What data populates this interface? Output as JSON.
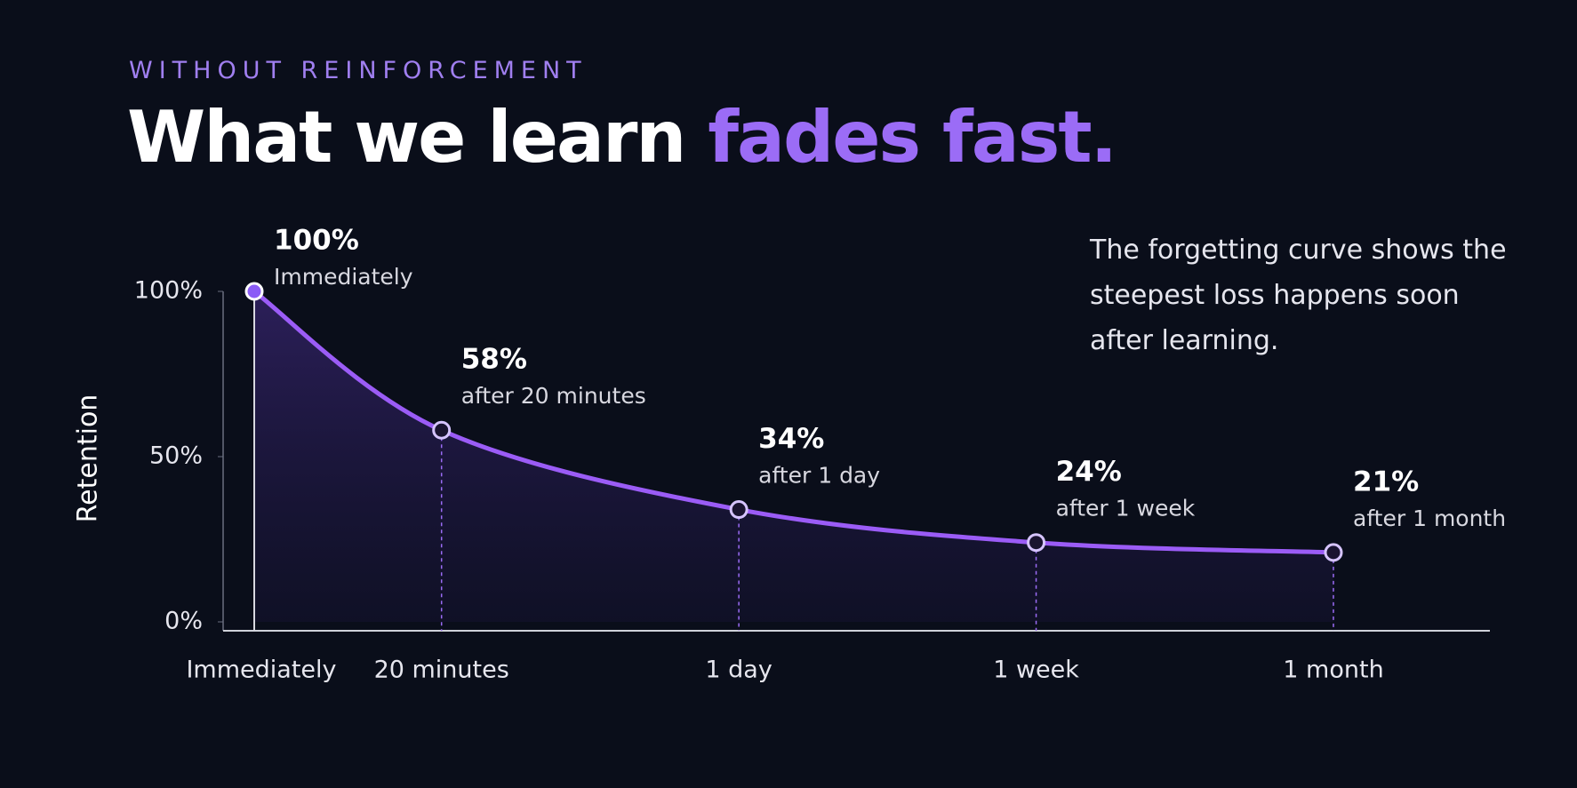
{
  "chart_data": {
    "type": "line",
    "kicker": "WITHOUT REINFORCEMENT",
    "title": "What we learn",
    "title_highlight": "fades fast.",
    "note": "The forgetting curve shows the steepest loss happens soon after learning.",
    "ylabel": "Retention",
    "categories": [
      "Immediately",
      "20 minutes",
      "1 day",
      "1 week",
      "1 month"
    ],
    "values": [
      100,
      58,
      34,
      24,
      21
    ],
    "value_labels": [
      "100%",
      "58%",
      "34%",
      "24%",
      "21%"
    ],
    "point_notes": [
      "Immediately",
      "after 20 minutes",
      "after 1 day",
      "after 1 week",
      "after 1 month"
    ],
    "color": "#9b5cf6",
    "ylim": [
      0,
      100
    ],
    "yticks": [
      {
        "value": 0,
        "label": "0%"
      },
      {
        "value": 50,
        "label": "50%"
      },
      {
        "value": 100,
        "label": "100%"
      }
    ]
  }
}
